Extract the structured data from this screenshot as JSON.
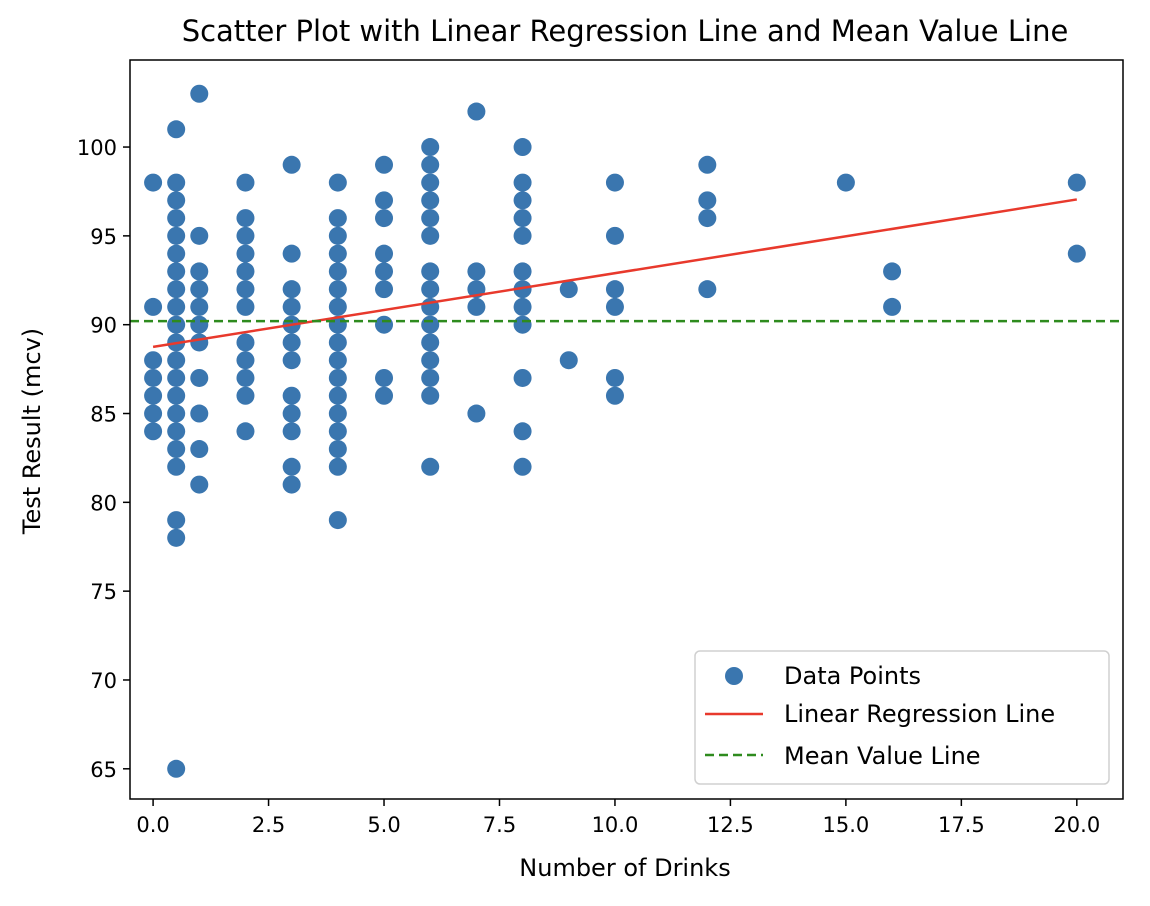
{
  "chart_data": {
    "type": "scatter",
    "title": "Scatter Plot with Linear Regression Line and Mean Value Line",
    "xlabel": "Number of Drinks",
    "ylabel": "Test Result (mcv)",
    "xlim": [
      -0.5,
      21.0
    ],
    "ylim": [
      63.3,
      104.9
    ],
    "xticks": [
      0.0,
      2.5,
      5.0,
      7.5,
      10.0,
      12.5,
      15.0,
      17.5,
      20.0
    ],
    "xtick_labels": [
      "0.0",
      "2.5",
      "5.0",
      "7.5",
      "10.0",
      "12.5",
      "15.0",
      "17.5",
      "20.0"
    ],
    "yticks": [
      65,
      70,
      75,
      80,
      85,
      90,
      95,
      100
    ],
    "ytick_labels": [
      "65",
      "70",
      "75",
      "80",
      "85",
      "90",
      "95",
      "100"
    ],
    "grid": false,
    "legend_position": "lower-right",
    "series": [
      {
        "name": "Data Points",
        "kind": "scatter",
        "color": "#3a76af",
        "points": [
          [
            0,
            98
          ],
          [
            0,
            91
          ],
          [
            0,
            88
          ],
          [
            0,
            87
          ],
          [
            0,
            86
          ],
          [
            0,
            85
          ],
          [
            0,
            84
          ],
          [
            0.5,
            101
          ],
          [
            0.5,
            98
          ],
          [
            0.5,
            97
          ],
          [
            0.5,
            96
          ],
          [
            0.5,
            95
          ],
          [
            0.5,
            94
          ],
          [
            0.5,
            93
          ],
          [
            0.5,
            92
          ],
          [
            0.5,
            91
          ],
          [
            0.5,
            90
          ],
          [
            0.5,
            89
          ],
          [
            0.5,
            88
          ],
          [
            0.5,
            87
          ],
          [
            0.5,
            86
          ],
          [
            0.5,
            85
          ],
          [
            0.5,
            84
          ],
          [
            0.5,
            83
          ],
          [
            0.5,
            82
          ],
          [
            0.5,
            79
          ],
          [
            0.5,
            78
          ],
          [
            0.5,
            65
          ],
          [
            1,
            103
          ],
          [
            1,
            95
          ],
          [
            1,
            93
          ],
          [
            1,
            92
          ],
          [
            1,
            91
          ],
          [
            1,
            90
          ],
          [
            1,
            89
          ],
          [
            1,
            87
          ],
          [
            1,
            85
          ],
          [
            1,
            83
          ],
          [
            1,
            81
          ],
          [
            2,
            98
          ],
          [
            2,
            96
          ],
          [
            2,
            95
          ],
          [
            2,
            94
          ],
          [
            2,
            93
          ],
          [
            2,
            92
          ],
          [
            2,
            91
          ],
          [
            2,
            89
          ],
          [
            2,
            88
          ],
          [
            2,
            87
          ],
          [
            2,
            86
          ],
          [
            2,
            84
          ],
          [
            3,
            99
          ],
          [
            3,
            94
          ],
          [
            3,
            92
          ],
          [
            3,
            91
          ],
          [
            3,
            90
          ],
          [
            3,
            89
          ],
          [
            3,
            88
          ],
          [
            3,
            86
          ],
          [
            3,
            85
          ],
          [
            3,
            84
          ],
          [
            3,
            82
          ],
          [
            3,
            81
          ],
          [
            4,
            98
          ],
          [
            4,
            96
          ],
          [
            4,
            95
          ],
          [
            4,
            94
          ],
          [
            4,
            93
          ],
          [
            4,
            92
          ],
          [
            4,
            91
          ],
          [
            4,
            90
          ],
          [
            4,
            89
          ],
          [
            4,
            88
          ],
          [
            4,
            87
          ],
          [
            4,
            86
          ],
          [
            4,
            85
          ],
          [
            4,
            84
          ],
          [
            4,
            83
          ],
          [
            4,
            82
          ],
          [
            4,
            79
          ],
          [
            5,
            99
          ],
          [
            5,
            97
          ],
          [
            5,
            96
          ],
          [
            5,
            94
          ],
          [
            5,
            93
          ],
          [
            5,
            92
          ],
          [
            5,
            90
          ],
          [
            5,
            87
          ],
          [
            5,
            86
          ],
          [
            6,
            100
          ],
          [
            6,
            99
          ],
          [
            6,
            98
          ],
          [
            6,
            97
          ],
          [
            6,
            96
          ],
          [
            6,
            95
          ],
          [
            6,
            93
          ],
          [
            6,
            92
          ],
          [
            6,
            91
          ],
          [
            6,
            90
          ],
          [
            6,
            89
          ],
          [
            6,
            88
          ],
          [
            6,
            87
          ],
          [
            6,
            86
          ],
          [
            6,
            82
          ],
          [
            7,
            102
          ],
          [
            7,
            93
          ],
          [
            7,
            92
          ],
          [
            7,
            91
          ],
          [
            7,
            85
          ],
          [
            8,
            100
          ],
          [
            8,
            98
          ],
          [
            8,
            97
          ],
          [
            8,
            96
          ],
          [
            8,
            95
          ],
          [
            8,
            93
          ],
          [
            8,
            92
          ],
          [
            8,
            91
          ],
          [
            8,
            90
          ],
          [
            8,
            87
          ],
          [
            8,
            84
          ],
          [
            8,
            82
          ],
          [
            9,
            92
          ],
          [
            9,
            88
          ],
          [
            10,
            98
          ],
          [
            10,
            95
          ],
          [
            10,
            92
          ],
          [
            10,
            91
          ],
          [
            10,
            87
          ],
          [
            10,
            86
          ],
          [
            12,
            99
          ],
          [
            12,
            97
          ],
          [
            12,
            96
          ],
          [
            12,
            92
          ],
          [
            15,
            98
          ],
          [
            16,
            93
          ],
          [
            16,
            91
          ],
          [
            20,
            98
          ],
          [
            20,
            94
          ]
        ]
      },
      {
        "name": "Linear Regression Line",
        "kind": "line",
        "color": "#e8392c",
        "x": [
          0,
          20
        ],
        "y": [
          88.75,
          97.05
        ]
      },
      {
        "name": "Mean Value Line",
        "kind": "hline",
        "color": "#2e8b1e",
        "dash": "dashed",
        "y": 90.2
      }
    ]
  }
}
